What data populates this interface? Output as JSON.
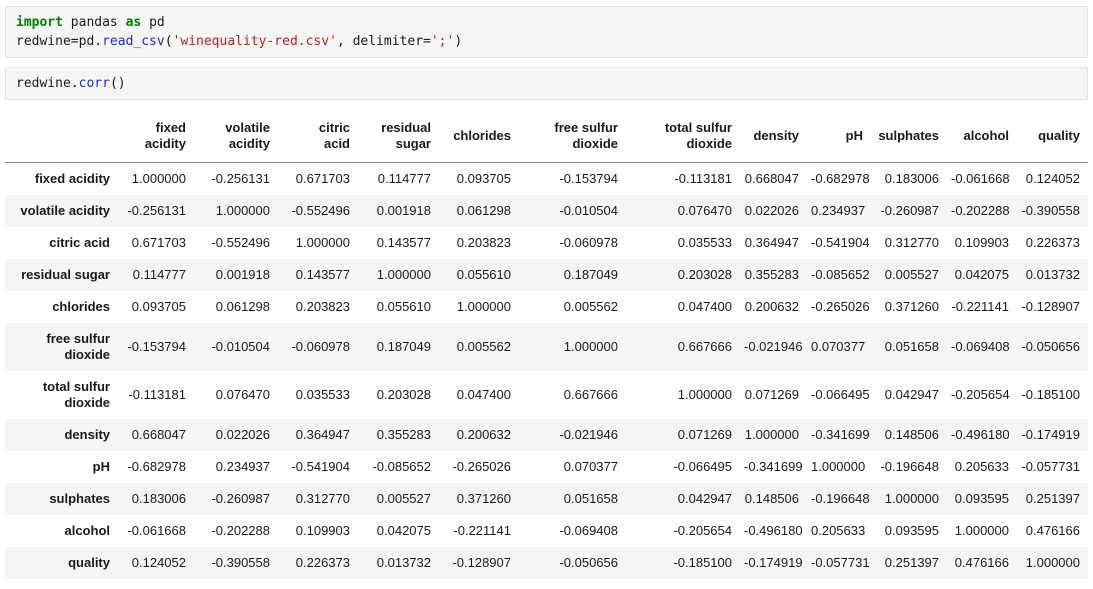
{
  "colors": {
    "keyword": "#008000",
    "function_name": "#1d2ed0",
    "string": "#ba2121",
    "code_bg": "#f5f5f5",
    "stripe_bg": "#f5f5f5",
    "header_border": "#8c8c8c"
  },
  "cells": [
    {
      "name": "import-cell",
      "lines": [
        [
          {
            "t": "import",
            "c": "kw"
          },
          {
            "t": " pandas ",
            "c": "plain"
          },
          {
            "t": "as",
            "c": "kw"
          },
          {
            "t": " pd",
            "c": "plain"
          }
        ],
        [
          {
            "t": "redwine=pd.",
            "c": "plain"
          },
          {
            "t": "read_csv",
            "c": "fn"
          },
          {
            "t": "(",
            "c": "plain"
          },
          {
            "t": "'winequality-red.csv'",
            "c": "str"
          },
          {
            "t": ", delimiter=",
            "c": "plain"
          },
          {
            "t": "';'",
            "c": "str"
          },
          {
            "t": ")",
            "c": "plain"
          }
        ]
      ]
    },
    {
      "name": "corr-cell",
      "lines": [
        [
          {
            "t": "redwine.",
            "c": "plain"
          },
          {
            "t": "corr",
            "c": "fn"
          },
          {
            "t": "()",
            "c": "plain"
          }
        ]
      ]
    }
  ],
  "table": {
    "columns": [
      {
        "lines": [
          "fixed",
          "acidity"
        ]
      },
      {
        "lines": [
          "volatile",
          "acidity"
        ]
      },
      {
        "lines": [
          "citric",
          "acid"
        ]
      },
      {
        "lines": [
          "residual",
          "sugar"
        ]
      },
      {
        "lines": [
          "chlorides"
        ]
      },
      {
        "lines": [
          "free sulfur",
          "dioxide"
        ]
      },
      {
        "lines": [
          "total sulfur",
          "dioxide"
        ]
      },
      {
        "lines": [
          "density"
        ]
      },
      {
        "lines": [
          "pH"
        ]
      },
      {
        "lines": [
          "sulphates"
        ]
      },
      {
        "lines": [
          "alcohol"
        ]
      },
      {
        "lines": [
          "quality"
        ]
      }
    ],
    "rows": [
      {
        "header": [
          "fixed acidity"
        ],
        "values": [
          "1.000000",
          "-0.256131",
          "0.671703",
          "0.114777",
          "0.093705",
          "-0.153794",
          "-0.113181",
          "0.668047",
          "-0.682978",
          "0.183006",
          "-0.061668",
          "0.124052"
        ]
      },
      {
        "header": [
          "volatile acidity"
        ],
        "values": [
          "-0.256131",
          "1.000000",
          "-0.552496",
          "0.001918",
          "0.061298",
          "-0.010504",
          "0.076470",
          "0.022026",
          "0.234937",
          "-0.260987",
          "-0.202288",
          "-0.390558"
        ]
      },
      {
        "header": [
          "citric acid"
        ],
        "values": [
          "0.671703",
          "-0.552496",
          "1.000000",
          "0.143577",
          "0.203823",
          "-0.060978",
          "0.035533",
          "0.364947",
          "-0.541904",
          "0.312770",
          "0.109903",
          "0.226373"
        ]
      },
      {
        "header": [
          "residual sugar"
        ],
        "values": [
          "0.114777",
          "0.001918",
          "0.143577",
          "1.000000",
          "0.055610",
          "0.187049",
          "0.203028",
          "0.355283",
          "-0.085652",
          "0.005527",
          "0.042075",
          "0.013732"
        ]
      },
      {
        "header": [
          "chlorides"
        ],
        "values": [
          "0.093705",
          "0.061298",
          "0.203823",
          "0.055610",
          "1.000000",
          "0.005562",
          "0.047400",
          "0.200632",
          "-0.265026",
          "0.371260",
          "-0.221141",
          "-0.128907"
        ]
      },
      {
        "header": [
          "free sulfur",
          "dioxide"
        ],
        "values": [
          "-0.153794",
          "-0.010504",
          "-0.060978",
          "0.187049",
          "0.005562",
          "1.000000",
          "0.667666",
          "-0.021946",
          "0.070377",
          "0.051658",
          "-0.069408",
          "-0.050656"
        ]
      },
      {
        "header": [
          "total sulfur",
          "dioxide"
        ],
        "values": [
          "-0.113181",
          "0.076470",
          "0.035533",
          "0.203028",
          "0.047400",
          "0.667666",
          "1.000000",
          "0.071269",
          "-0.066495",
          "0.042947",
          "-0.205654",
          "-0.185100"
        ]
      },
      {
        "header": [
          "density"
        ],
        "values": [
          "0.668047",
          "0.022026",
          "0.364947",
          "0.355283",
          "0.200632",
          "-0.021946",
          "0.071269",
          "1.000000",
          "-0.341699",
          "0.148506",
          "-0.496180",
          "-0.174919"
        ]
      },
      {
        "header": [
          "pH"
        ],
        "values": [
          "-0.682978",
          "0.234937",
          "-0.541904",
          "-0.085652",
          "-0.265026",
          "0.070377",
          "-0.066495",
          "-0.341699",
          "1.000000",
          "-0.196648",
          "0.205633",
          "-0.057731"
        ]
      },
      {
        "header": [
          "sulphates"
        ],
        "values": [
          "0.183006",
          "-0.260987",
          "0.312770",
          "0.005527",
          "0.371260",
          "0.051658",
          "0.042947",
          "0.148506",
          "-0.196648",
          "1.000000",
          "0.093595",
          "0.251397"
        ]
      },
      {
        "header": [
          "alcohol"
        ],
        "values": [
          "-0.061668",
          "-0.202288",
          "0.109903",
          "0.042075",
          "-0.221141",
          "-0.069408",
          "-0.205654",
          "-0.496180",
          "0.205633",
          "0.093595",
          "1.000000",
          "0.476166"
        ]
      },
      {
        "header": [
          "quality"
        ],
        "values": [
          "0.124052",
          "-0.390558",
          "0.226373",
          "0.013732",
          "-0.128907",
          "-0.050656",
          "-0.185100",
          "-0.174919",
          "-0.057731",
          "0.251397",
          "0.476166",
          "1.000000"
        ]
      }
    ]
  }
}
